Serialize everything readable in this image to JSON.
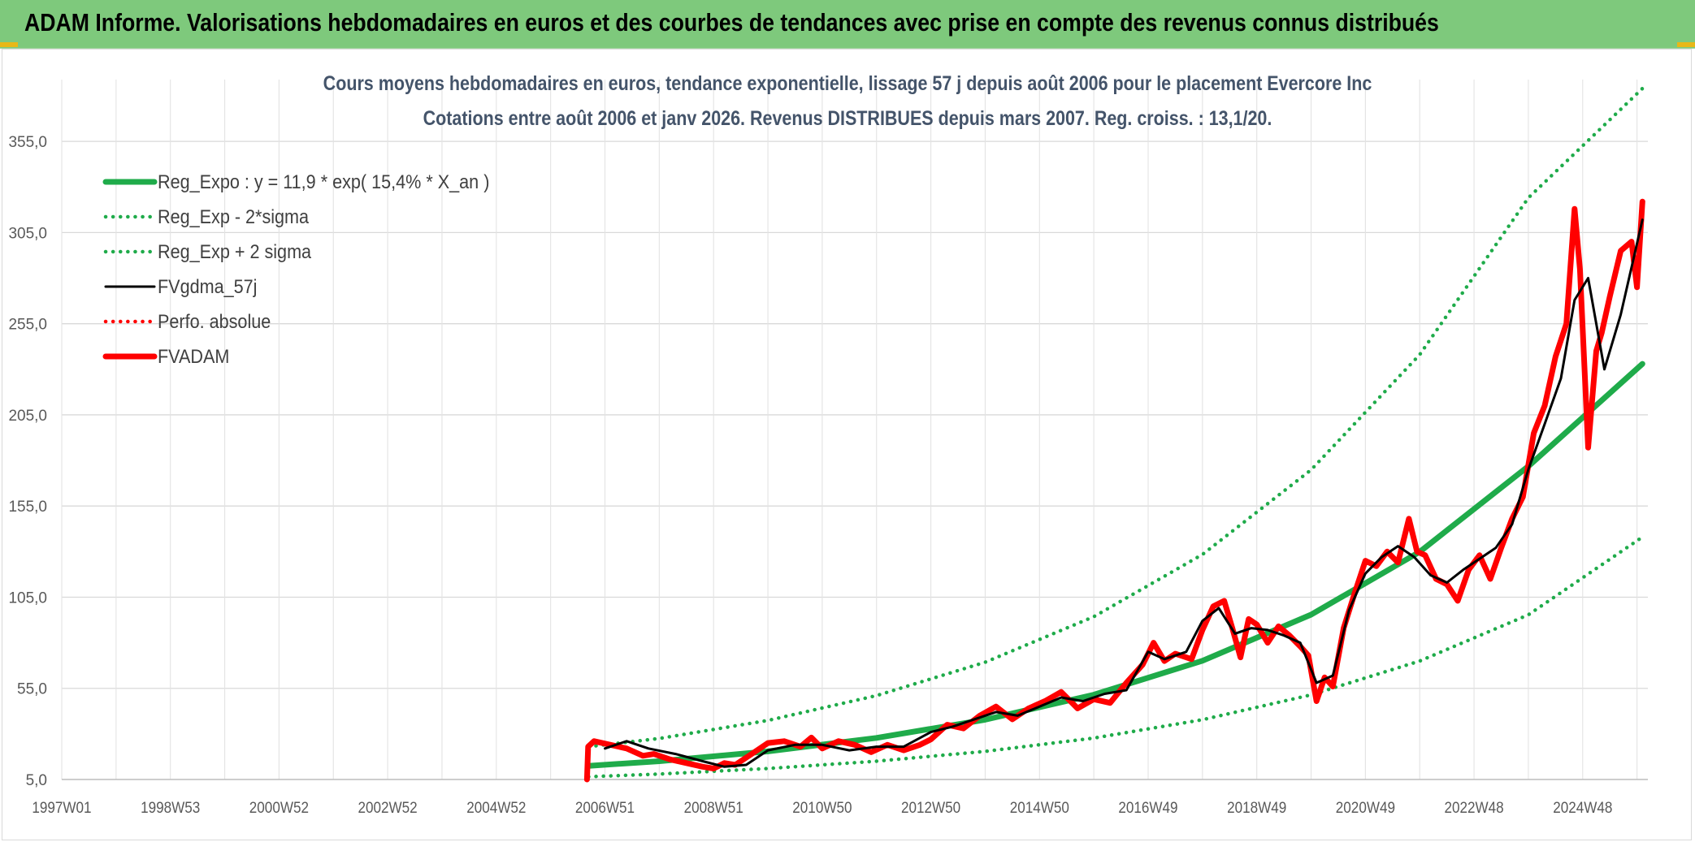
{
  "header": {
    "title": "ADAM Informe. Valorisations hebdomadaires en euros et des courbes de tendances avec prise en compte des revenus connus distribués"
  },
  "chart_data": {
    "type": "line",
    "title": "Cours moyens hebdomadaires en euros, tendance exponentielle, lissage 57 j depuis août 2006 pour le placement Evercore Inc",
    "subtitle": "Cotations entre août 2006 et janv 2026. Revenus DISTRIBUES depuis mars 2007. Reg. croiss. : 13,1/20.",
    "xlabel": "",
    "ylabel": "",
    "ylim": [
      5,
      380
    ],
    "xlim": [
      1997.0,
      2026.2
    ],
    "y_ticks": [
      "5,0",
      "55,0",
      "105,0",
      "155,0",
      "205,0",
      "255,0",
      "305,0",
      "355,0"
    ],
    "y_tick_values": [
      5,
      55,
      105,
      155,
      205,
      255,
      305,
      355
    ],
    "x_ticks": [
      "1997W01",
      "1998W53",
      "2000W52",
      "2002W52",
      "2004W52",
      "2006W51",
      "2008W51",
      "2010W50",
      "2012W50",
      "2014W50",
      "2016W49",
      "2018W49",
      "2020W49",
      "2022W48",
      "2024W48"
    ],
    "x_tick_values": [
      1997.0,
      1999.0,
      2001.0,
      2003.0,
      2005.0,
      2007.0,
      2009.0,
      2011.0,
      2013.0,
      2015.0,
      2017.0,
      2019.0,
      2021.0,
      2023.0,
      2025.0
    ],
    "grid": true,
    "legend_position": "top-left",
    "series": [
      {
        "name": "Reg_Expo : y = 11,9 * exp( 15,4% *  X_an )",
        "color": "#1fab4a",
        "style": "solid-thick",
        "x": [
          2006.7,
          2008,
          2010,
          2012,
          2014,
          2016,
          2018,
          2020,
          2022,
          2024,
          2026.1
        ],
        "y": [
          12.5,
          15.0,
          20.4,
          27.8,
          37.8,
          51.5,
          70.1,
          95.4,
          129.9,
          176.8,
          233.0
        ]
      },
      {
        "name": "Reg_Exp - 2*sigma",
        "color": "#1fab4a",
        "style": "dotted",
        "x": [
          2006.7,
          2008,
          2010,
          2012,
          2014,
          2016,
          2018,
          2020,
          2022,
          2024,
          2026.1
        ],
        "y": [
          6.5,
          8.0,
          11.0,
          15.0,
          20.4,
          27.7,
          37.8,
          51.4,
          70.0,
          95.3,
          138.0
        ]
      },
      {
        "name": "Reg_Exp + 2 sigma",
        "color": "#1fab4a",
        "style": "dotted",
        "x": [
          2006.7,
          2008,
          2010,
          2012,
          2014,
          2016,
          2018,
          2020,
          2022,
          2024,
          2026.1
        ],
        "y": [
          23.0,
          27.5,
          37.4,
          51.0,
          69.3,
          94.3,
          128.4,
          174.8,
          238.0,
          324.0,
          384.0
        ]
      },
      {
        "name": "FVgdma_57j",
        "color": "#000000",
        "style": "solid",
        "x": [
          2007.0,
          2007.4,
          2007.8,
          2008.3,
          2008.8,
          2009.2,
          2009.6,
          2010.0,
          2010.5,
          2011.0,
          2011.5,
          2012.0,
          2012.5,
          2013.0,
          2013.4,
          2013.8,
          2014.2,
          2014.6,
          2015.0,
          2015.4,
          2015.8,
          2016.2,
          2016.6,
          2017.0,
          2017.3,
          2017.7,
          2018.0,
          2018.3,
          2018.6,
          2018.9,
          2019.2,
          2019.5,
          2019.8,
          2020.1,
          2020.4,
          2020.7,
          2021.0,
          2021.3,
          2021.6,
          2021.9,
          2022.2,
          2022.5,
          2022.8,
          2023.1,
          2023.4,
          2023.7,
          2024.0,
          2024.3,
          2024.6,
          2024.85,
          2025.1,
          2025.4,
          2025.7,
          2026.1
        ],
        "y": [
          22,
          26,
          22,
          19,
          15,
          12,
          13,
          21,
          24,
          24,
          21,
          23,
          23,
          31,
          34,
          38,
          42,
          40,
          45,
          50,
          48,
          52,
          54,
          75,
          71,
          75,
          92,
          99,
          85,
          88,
          87,
          84,
          80,
          58,
          62,
          98,
          118,
          127,
          133,
          127,
          117,
          113,
          120,
          126,
          132,
          145,
          175,
          200,
          225,
          268,
          280,
          230,
          260,
          312
        ]
      },
      {
        "name": "Perfo. absolue",
        "color": "#ff0000",
        "style": "dotted",
        "x": [],
        "y": []
      },
      {
        "name": "FVADAM",
        "color": "#ff0000",
        "style": "solid-thick",
        "x": [
          2006.67,
          2006.69,
          2006.8,
          2007.1,
          2007.4,
          2007.7,
          2007.9,
          2008.2,
          2008.5,
          2008.8,
          2009.0,
          2009.2,
          2009.4,
          2009.7,
          2010.0,
          2010.3,
          2010.6,
          2010.8,
          2011.0,
          2011.3,
          2011.6,
          2011.9,
          2012.2,
          2012.5,
          2012.8,
          2013.0,
          2013.3,
          2013.6,
          2013.9,
          2014.2,
          2014.5,
          2014.8,
          2015.1,
          2015.4,
          2015.7,
          2016.0,
          2016.3,
          2016.6,
          2016.9,
          2017.1,
          2017.3,
          2017.5,
          2017.8,
          2018.0,
          2018.2,
          2018.4,
          2018.55,
          2018.7,
          2018.85,
          2019.0,
          2019.2,
          2019.4,
          2019.6,
          2019.8,
          2019.95,
          2020.1,
          2020.25,
          2020.4,
          2020.6,
          2020.8,
          2021.0,
          2021.2,
          2021.4,
          2021.6,
          2021.8,
          2021.95,
          2022.1,
          2022.3,
          2022.5,
          2022.7,
          2022.9,
          2023.1,
          2023.3,
          2023.5,
          2023.7,
          2023.9,
          2024.1,
          2024.3,
          2024.5,
          2024.7,
          2024.85,
          2024.95,
          2025.1,
          2025.25,
          2025.35,
          2025.5,
          2025.7,
          2025.9,
          2026.0,
          2026.1
        ],
        "y": [
          5,
          23,
          26,
          24,
          22,
          18,
          19,
          16,
          14,
          12,
          11,
          14,
          13,
          19,
          25,
          26,
          23,
          28,
          22,
          26,
          24,
          20,
          24,
          21,
          24,
          27,
          35,
          33,
          40,
          45,
          38,
          44,
          48,
          53,
          44,
          49,
          47,
          58,
          68,
          80,
          70,
          74,
          71,
          87,
          100,
          103,
          88,
          72,
          93,
          90,
          80,
          89,
          84,
          78,
          73,
          48,
          61,
          56,
          88,
          107,
          125,
          122,
          130,
          124,
          148,
          130,
          128,
          115,
          112,
          103,
          120,
          128,
          115,
          132,
          148,
          160,
          195,
          210,
          237,
          255,
          318,
          285,
          187,
          240,
          250,
          270,
          295,
          300,
          275,
          322
        ]
      }
    ]
  }
}
